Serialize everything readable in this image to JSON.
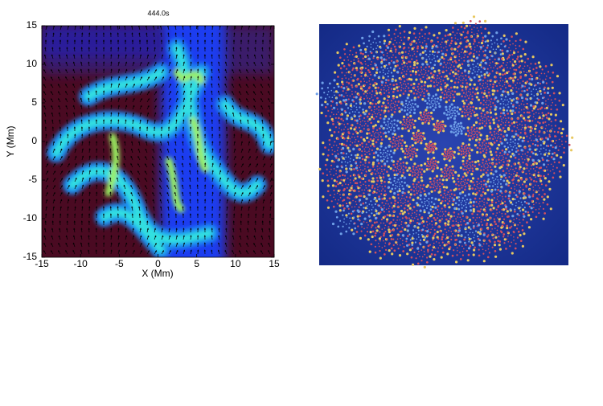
{
  "chart_data": {
    "type": "field",
    "title": "444.0s",
    "x_label": "X (Mm)",
    "y_label": "Y (Mm)",
    "xlim": [
      -15,
      15
    ],
    "ylim": [
      -15,
      15
    ],
    "xticks": [
      -15,
      -10,
      -5,
      0,
      5,
      10,
      15
    ],
    "yticks": [
      -15,
      -10,
      -5,
      0,
      5,
      10,
      15
    ]
  }
}
